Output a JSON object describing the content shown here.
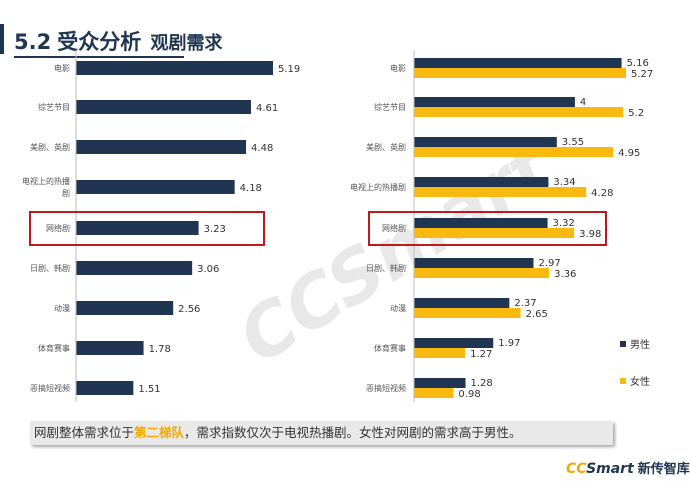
{
  "header": {
    "number": "5.2",
    "title": "受众分析",
    "subtitle": "观剧需求"
  },
  "note": {
    "prefix": "网剧整体需求位于",
    "highlight": "第二梯队",
    "suffix": "，需求指数仅次于电视热播剧。女性对网剧的需求高于男性。"
  },
  "logo": {
    "en_cc": "CC",
    "en_rest": "Smart",
    "cn": "新传智库"
  },
  "watermark": "CCSmart",
  "colors": {
    "navy": "#1f3552",
    "yellow": "#f9b90f",
    "highlight_border": "#c0181f"
  },
  "chart_data": [
    {
      "type": "bar",
      "orientation": "horizontal",
      "title": "",
      "categories": [
        "电影",
        "综艺节目",
        "美剧、英剧",
        "电视上的热播剧",
        "网络剧",
        "日剧、韩剧",
        "动漫",
        "体育赛事",
        "恶搞短视频"
      ],
      "category_lines": [
        [
          "电影"
        ],
        [
          "综艺节目"
        ],
        [
          "美剧、英剧"
        ],
        [
          "电视上的热播",
          "剧"
        ],
        [
          "网络剧"
        ],
        [
          "日剧、韩剧"
        ],
        [
          "动漫"
        ],
        [
          "体育赛事"
        ],
        [
          "恶搞短视频"
        ]
      ],
      "values": [
        5.19,
        4.61,
        4.48,
        4.18,
        3.23,
        3.06,
        2.56,
        1.78,
        1.51
      ],
      "value_labels": [
        "5.19",
        "4.61",
        "4.48",
        "4.18",
        "3.23",
        "3.06",
        "2.56",
        "1.78",
        "1.51"
      ],
      "highlighted_category": "网络剧",
      "xlim": [
        0,
        6
      ]
    },
    {
      "type": "bar",
      "orientation": "horizontal",
      "title": "",
      "categories": [
        "电影",
        "综艺节目",
        "美剧、英剧",
        "电视上的热播剧",
        "网络剧",
        "日剧、韩剧",
        "动漫",
        "体育赛事",
        "恶搞短视频"
      ],
      "series": [
        {
          "name": "男性",
          "values": [
            5.16,
            4,
            3.55,
            3.34,
            3.32,
            2.97,
            2.37,
            1.97,
            1.28
          ],
          "labels": [
            "5.16",
            "4",
            "3.55",
            "3.34",
            "3.32",
            "2.97",
            "2.37",
            "1.97",
            "1.28"
          ]
        },
        {
          "name": "女性",
          "values": [
            5.27,
            5.2,
            4.95,
            4.28,
            3.98,
            3.36,
            2.65,
            1.27,
            0.98
          ],
          "labels": [
            "5.27",
            "5.2",
            "4.95",
            "4.28",
            "3.98",
            "3.36",
            "2.65",
            "1.27",
            "0.98"
          ]
        }
      ],
      "highlighted_category": "网络剧",
      "legend": [
        "男性",
        "女性"
      ],
      "legend_position": "right",
      "xlim": [
        0,
        6
      ]
    }
  ]
}
